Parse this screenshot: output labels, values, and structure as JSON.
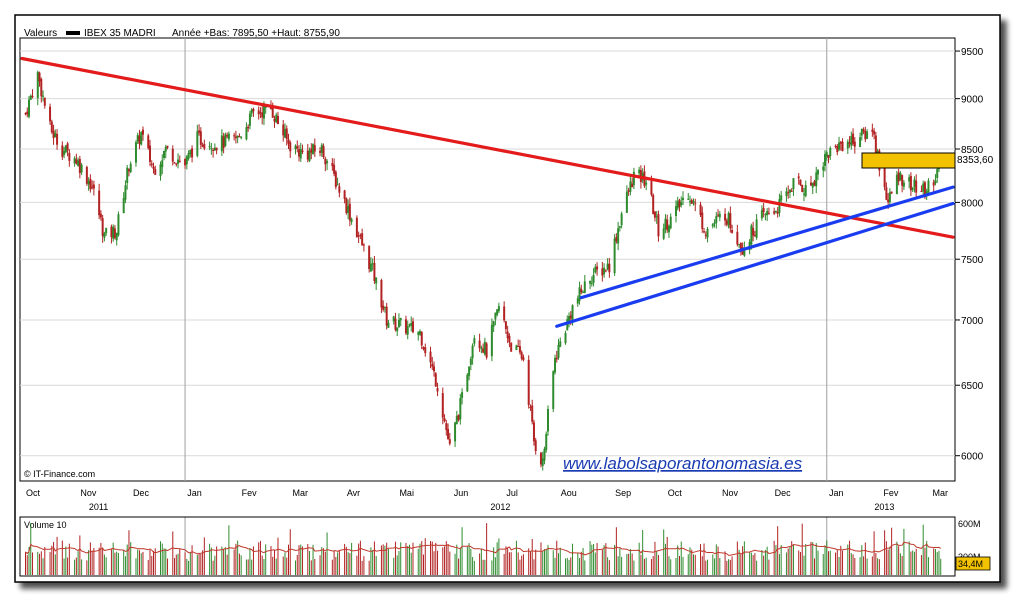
{
  "header": {
    "label": "Valeurs",
    "instrument": "IBEX 35 MADRI",
    "period_info": "Année +Bas: 7895,50 +Haut: 8755,90"
  },
  "copyright": "© IT-Finance.com",
  "watermark": "www.labolsaporantonomasia.es",
  "volume_title": "Volume 10",
  "colors": {
    "up": "#2e8b2e",
    "down": "#b22222",
    "trend_red": "#e31b1b",
    "trend_blue": "#1a3cf0",
    "price_box": "#f2c200",
    "volume_ma": "#c0392b"
  },
  "chart_data": {
    "type": "candlestick",
    "instrument": "IBEX 35 MADRI",
    "y_axis": {
      "ticks": [
        6000,
        6500,
        7000,
        7500,
        8000,
        8500,
        9000,
        9500
      ],
      "tick_labels": [
        "6000",
        "6500",
        "7000",
        "7500",
        "8000",
        "8500",
        "9000",
        "9500"
      ],
      "scale": "log",
      "range": [
        5850,
        9620
      ],
      "position": "right"
    },
    "x_axis": {
      "months": [
        "Oct",
        "Nov",
        "Dec",
        "Jan",
        "Fev",
        "Mar",
        "Avr",
        "Mai",
        "Jun",
        "Jul",
        "Aou",
        "Sep",
        "Oct",
        "Nov",
        "Dec",
        "Jan",
        "Fev",
        "Mar"
      ],
      "years": [
        "2011",
        "2012",
        "2013"
      ],
      "range": [
        "2011-10-01",
        "2013-03-15"
      ]
    },
    "last_price_label": "8353,60",
    "last_price": 8353.6,
    "price_path": [
      [
        "2011-10-03",
        8850
      ],
      [
        "2011-10-10",
        9250
      ],
      [
        "2011-10-17",
        8700
      ],
      [
        "2011-10-24",
        8500
      ],
      [
        "2011-11-01",
        8400
      ],
      [
        "2011-11-10",
        8150
      ],
      [
        "2011-11-17",
        7700
      ],
      [
        "2011-11-24",
        7750
      ],
      [
        "2011-12-01",
        8350
      ],
      [
        "2011-12-08",
        8650
      ],
      [
        "2011-12-15",
        8300
      ],
      [
        "2011-12-22",
        8500
      ],
      [
        "2012-01-02",
        8350
      ],
      [
        "2012-01-09",
        8600
      ],
      [
        "2012-01-20",
        8550
      ],
      [
        "2012-02-01",
        8600
      ],
      [
        "2012-02-10",
        8850
      ],
      [
        "2012-02-20",
        8900
      ],
      [
        "2012-03-01",
        8550
      ],
      [
        "2012-03-10",
        8450
      ],
      [
        "2012-03-20",
        8500
      ],
      [
        "2012-04-01",
        8050
      ],
      [
        "2012-04-10",
        7700
      ],
      [
        "2012-04-18",
        7400
      ],
      [
        "2012-04-26",
        7000
      ],
      [
        "2012-05-05",
        6950
      ],
      [
        "2012-05-15",
        6900
      ],
      [
        "2012-05-25",
        6500
      ],
      [
        "2012-06-01",
        6050
      ],
      [
        "2012-06-08",
        6400
      ],
      [
        "2012-06-15",
        6900
      ],
      [
        "2012-06-22",
        6750
      ],
      [
        "2012-06-29",
        7100
      ],
      [
        "2012-07-06",
        6800
      ],
      [
        "2012-07-13",
        6700
      ],
      [
        "2012-07-19",
        6100
      ],
      [
        "2012-07-24",
        5950
      ],
      [
        "2012-07-31",
        6700
      ],
      [
        "2012-08-10",
        7100
      ],
      [
        "2012-08-20",
        7350
      ],
      [
        "2012-08-31",
        7450
      ],
      [
        "2012-09-07",
        7900
      ],
      [
        "2012-09-14",
        8250
      ],
      [
        "2012-09-21",
        8200
      ],
      [
        "2012-09-28",
        7750
      ],
      [
        "2012-10-05",
        7850
      ],
      [
        "2012-10-15",
        8100
      ],
      [
        "2012-10-25",
        7750
      ],
      [
        "2012-11-05",
        7900
      ],
      [
        "2012-11-15",
        7600
      ],
      [
        "2012-11-25",
        7850
      ],
      [
        "2012-12-05",
        7950
      ],
      [
        "2012-12-15",
        8200
      ],
      [
        "2012-12-22",
        8100
      ],
      [
        "2013-01-02",
        8450
      ],
      [
        "2013-01-10",
        8550
      ],
      [
        "2013-01-20",
        8600
      ],
      [
        "2013-01-28",
        8700
      ],
      [
        "2013-02-01",
        8350
      ],
      [
        "2013-02-06",
        8000
      ],
      [
        "2013-02-12",
        8250
      ],
      [
        "2013-02-20",
        8150
      ],
      [
        "2013-02-27",
        8100
      ],
      [
        "2013-03-05",
        8250
      ],
      [
        "2013-03-08",
        8353.6
      ]
    ],
    "trendlines": [
      {
        "color": "red",
        "from": [
          "2011-10-01",
          9420
        ],
        "to": [
          "2013-03-15",
          7690
        ]
      },
      {
        "color": "blue",
        "from": [
          "2012-08-01",
          6950
        ],
        "to": [
          "2013-03-15",
          7990
        ]
      },
      {
        "color": "blue",
        "from": [
          "2012-08-15",
          7180
        ],
        "to": [
          "2013-03-15",
          8140
        ]
      }
    ],
    "volume": {
      "title": "Volume 10",
      "ticks": [
        "600M",
        "300M"
      ],
      "last_label": "34,4M",
      "max": 600
    }
  }
}
